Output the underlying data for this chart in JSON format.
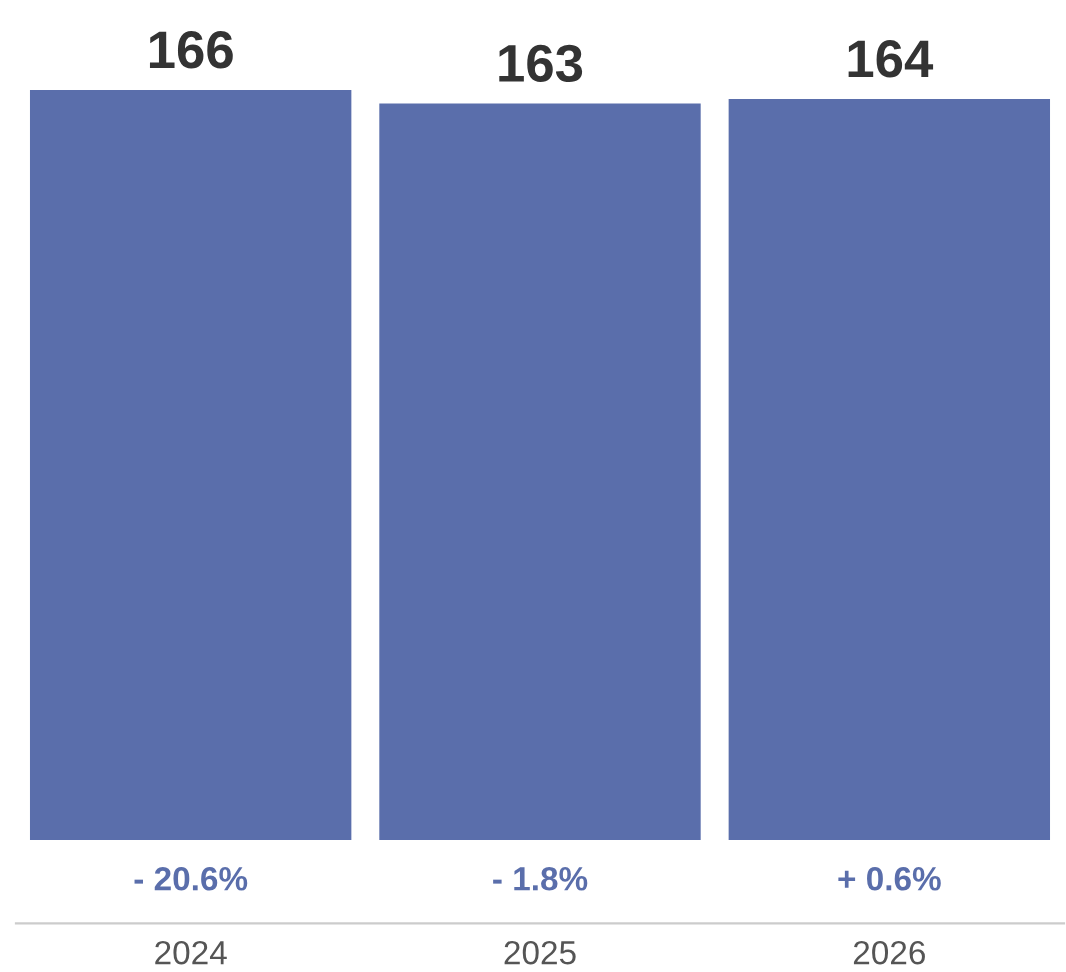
{
  "chart_data": {
    "type": "bar",
    "categories": [
      "2024",
      "2025",
      "2026"
    ],
    "values": [
      166,
      163,
      164
    ],
    "color": "#5a6eab",
    "data_labels": true,
    "tick_labels": "x",
    "grid": false,
    "legend": false,
    "annotations": [
      "- 20.6%",
      "- 1.8%",
      "+ 0.6%"
    ]
  }
}
